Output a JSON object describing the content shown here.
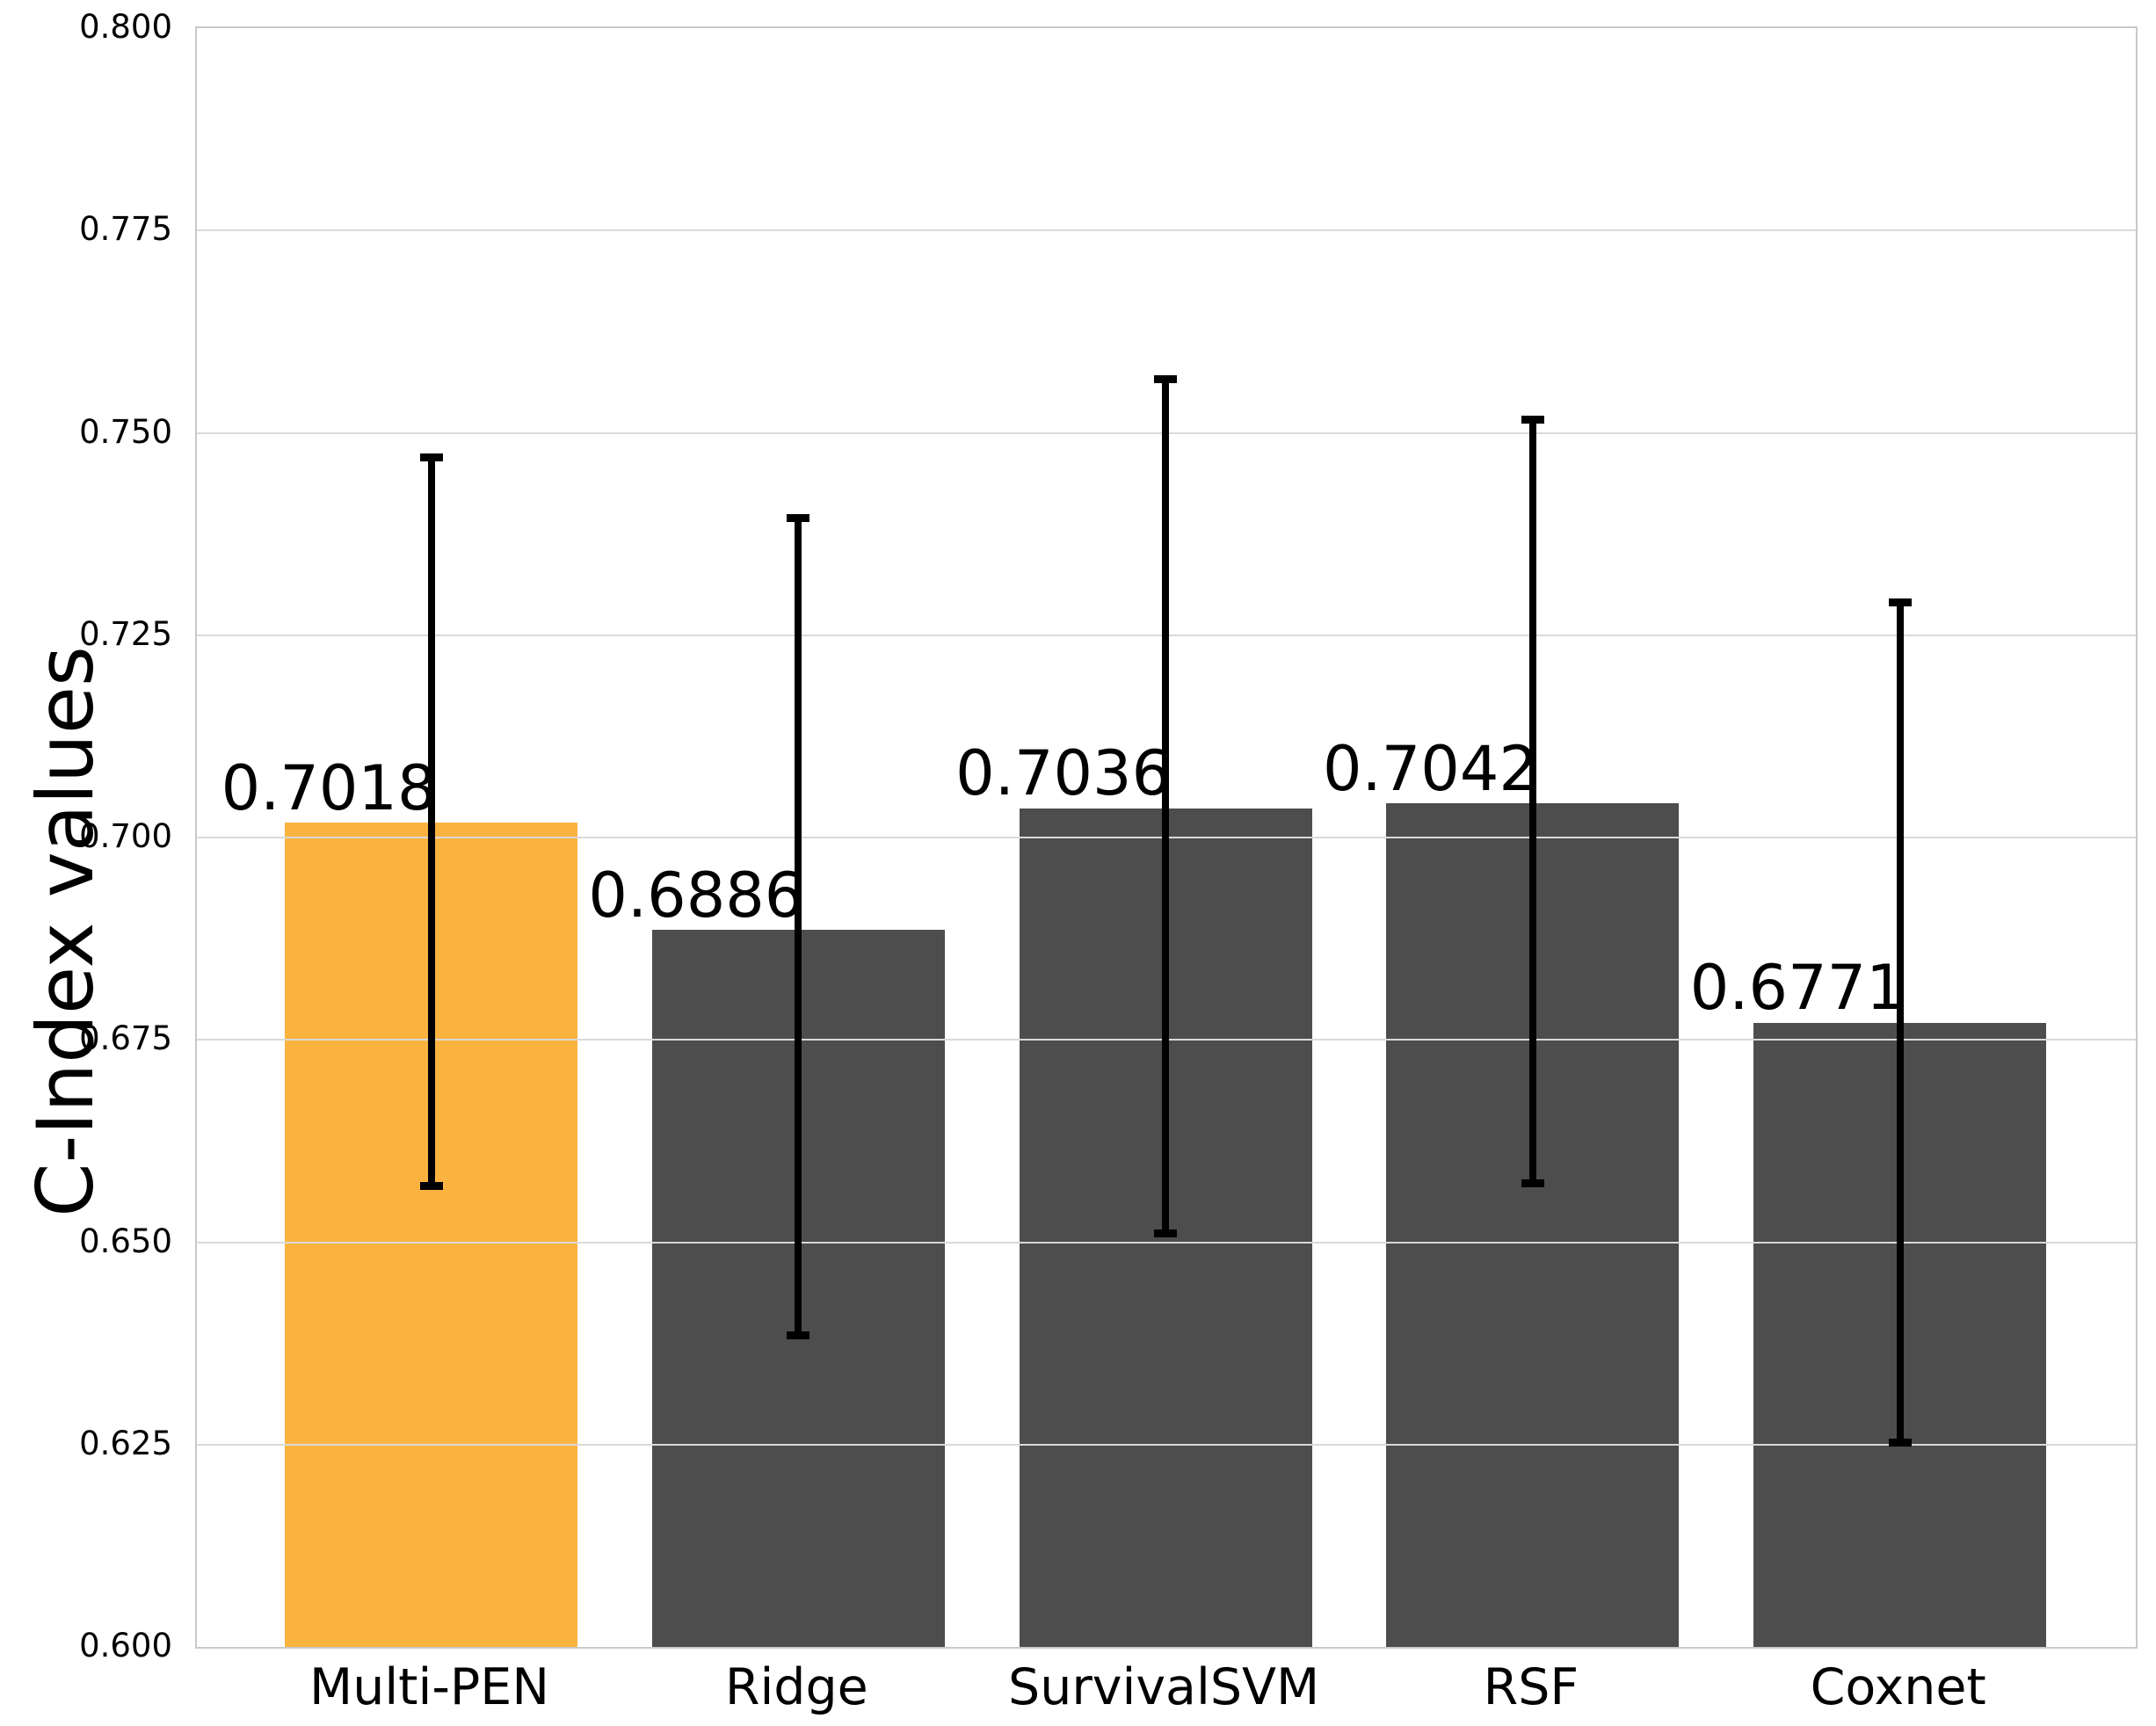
{
  "chart_data": {
    "type": "bar",
    "title": "",
    "xlabel": "",
    "ylabel": "C-Index values",
    "categories": [
      "Multi-PEN",
      "Ridge",
      "SurvivalSVM",
      "RSF",
      "Coxnet"
    ],
    "values": [
      0.7018,
      0.6886,
      0.7036,
      0.7042,
      0.6771
    ],
    "value_labels": [
      "0.7018",
      "0.6886",
      "0.7036",
      "0.7042",
      "0.6771"
    ],
    "error_low": [
      0.6569,
      0.6384,
      0.651,
      0.6572,
      0.6252
    ],
    "error_high": [
      0.747,
      0.7395,
      0.7567,
      0.7517,
      0.7291
    ],
    "bar_colors": [
      "#FBB33F",
      "#4D4D4D",
      "#4D4D4D",
      "#4D4D4D",
      "#4D4D4D"
    ],
    "highlight_index": 0,
    "ylim": [
      0.6,
      0.8
    ],
    "ytick_step": 0.025,
    "ytick_labels": [
      "0.800",
      "0.775",
      "0.750",
      "0.725",
      "0.700",
      "0.675",
      "0.650",
      "0.625",
      "0.600"
    ],
    "grid": "horizontal",
    "legend_position": "none",
    "colors": {
      "highlight": "#FBB33F",
      "default_bar": "#4D4D4D",
      "grid": "#D9D9D9",
      "spine": "#C9C9C9",
      "errorbar": "#000000",
      "text": "#000000",
      "background": "#FFFFFF"
    }
  }
}
